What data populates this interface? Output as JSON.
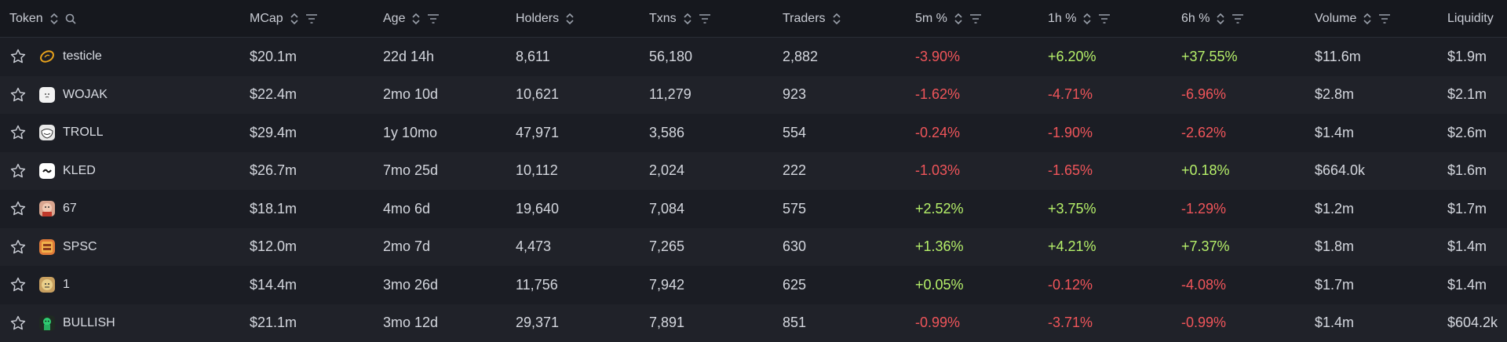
{
  "columns": {
    "token": "Token",
    "mcap": "MCap",
    "age": "Age",
    "holders": "Holders",
    "txns": "Txns",
    "traders": "Traders",
    "m5": "5m %",
    "h1": "1h %",
    "h6": "6h %",
    "volume": "Volume",
    "liquidity": "Liquidity"
  },
  "colors": {
    "negative": "#f0555a",
    "positive": "#b6f06a"
  },
  "rows": [
    {
      "name": "testicle",
      "icon": "testicle-logo-icon",
      "mcap": "$20.1m",
      "age": "22d 14h",
      "holders": "8,611",
      "txns": "56,180",
      "traders": "2,882",
      "m5": "-3.90%",
      "h1": "+6.20%",
      "h6": "+37.55%",
      "volume": "$11.6m",
      "liquidity": "$1.9m"
    },
    {
      "name": "WOJAK",
      "icon": "wojak-logo-icon",
      "mcap": "$22.4m",
      "age": "2mo 10d",
      "holders": "10,621",
      "txns": "11,279",
      "traders": "923",
      "m5": "-1.62%",
      "h1": "-4.71%",
      "h6": "-6.96%",
      "volume": "$2.8m",
      "liquidity": "$2.1m"
    },
    {
      "name": "TROLL",
      "icon": "troll-logo-icon",
      "mcap": "$29.4m",
      "age": "1y 10mo",
      "holders": "47,971",
      "txns": "3,586",
      "traders": "554",
      "m5": "-0.24%",
      "h1": "-1.90%",
      "h6": "-2.62%",
      "volume": "$1.4m",
      "liquidity": "$2.6m"
    },
    {
      "name": "KLED",
      "icon": "kled-logo-icon",
      "mcap": "$26.7m",
      "age": "7mo 25d",
      "holders": "10,112",
      "txns": "2,024",
      "traders": "222",
      "m5": "-1.03%",
      "h1": "-1.65%",
      "h6": "+0.18%",
      "volume": "$664.0k",
      "liquidity": "$1.6m"
    },
    {
      "name": "67",
      "icon": "sixtyseven-logo-icon",
      "mcap": "$18.1m",
      "age": "4mo 6d",
      "holders": "19,640",
      "txns": "7,084",
      "traders": "575",
      "m5": "+2.52%",
      "h1": "+3.75%",
      "h6": "-1.29%",
      "volume": "$1.2m",
      "liquidity": "$1.7m"
    },
    {
      "name": "SPSC",
      "icon": "spsc-logo-icon",
      "mcap": "$12.0m",
      "age": "2mo 7d",
      "holders": "4,473",
      "txns": "7,265",
      "traders": "630",
      "m5": "+1.36%",
      "h1": "+4.21%",
      "h6": "+7.37%",
      "volume": "$1.8m",
      "liquidity": "$1.4m"
    },
    {
      "name": "1",
      "icon": "one-logo-icon",
      "mcap": "$14.4m",
      "age": "3mo 26d",
      "holders": "11,756",
      "txns": "7,942",
      "traders": "625",
      "m5": "+0.05%",
      "h1": "-0.12%",
      "h6": "-4.08%",
      "volume": "$1.7m",
      "liquidity": "$1.4m"
    },
    {
      "name": "BULLISH",
      "icon": "bullish-logo-icon",
      "mcap": "$21.1m",
      "age": "3mo 12d",
      "holders": "29,371",
      "txns": "7,891",
      "traders": "851",
      "m5": "-0.99%",
      "h1": "-3.71%",
      "h6": "-0.99%",
      "volume": "$1.4m",
      "liquidity": "$604.2k"
    }
  ]
}
